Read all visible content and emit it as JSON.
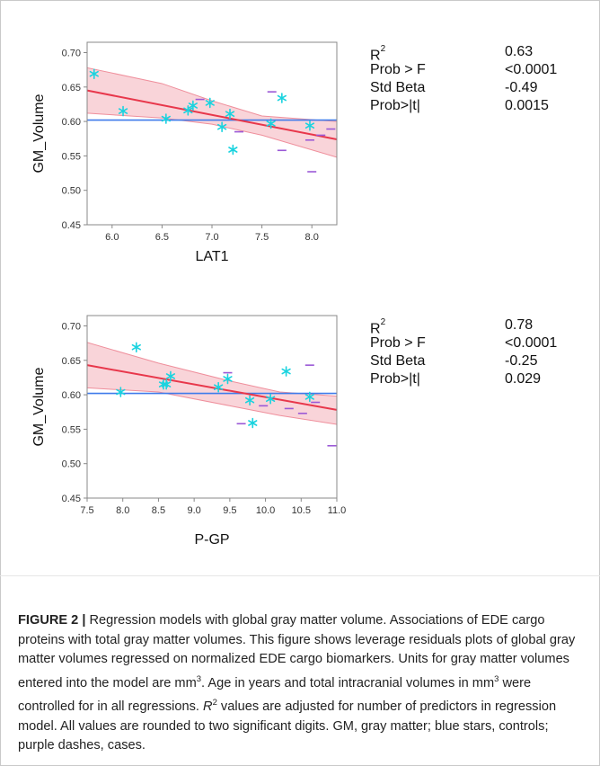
{
  "figure": {
    "label": "FIGURE 2 |",
    "caption_parts": [
      {
        "t": " Regression models with global gray matter volume. Associations of EDE cargo proteins with total gray matter volumes. This figure shows leverage residuals plots of global gray matter volumes regressed on normalized EDE cargo biomarkers. Units for gray matter volumes entered into the model are mm"
      },
      {
        "sup": "3"
      },
      {
        "t": ". Age in years and total intracranial volumes in mm"
      },
      {
        "sup": "3"
      },
      {
        "t": " were controlled for in all regressions. "
      },
      {
        "em": "R"
      },
      {
        "sup": "2"
      },
      {
        "t": " values are adjusted for number of predictors in regression model. All values are rounded to two significant digits. GM, gray matter; blue stars, controls; purple dashes, cases."
      }
    ]
  },
  "colors": {
    "control_marker": "#19d3df",
    "case_marker": "#9b59d6",
    "fit_line": "#e8374b",
    "ci_fill": "#f7c5cc",
    "ci_edge": "#ef8f9c",
    "mean_line": "#3f7bea",
    "frame": "#888888"
  },
  "panels": [
    {
      "stats": [
        {
          "label": "R",
          "label_sup": "2",
          "value": "0.63"
        },
        {
          "label": "Prob > F",
          "label_sup": "",
          "value": "<0.0001"
        },
        {
          "label": "Std Beta",
          "label_sup": "",
          "value": "-0.49"
        },
        {
          "label": "Prob>|t|",
          "label_sup": "",
          "value": "0.0015"
        }
      ],
      "chart_data": {
        "type": "scatter",
        "xlabel": "LAT1",
        "ylabel": "GM_Volume",
        "xlim": [
          5.75,
          8.25
        ],
        "ylim": [
          0.45,
          0.715
        ],
        "xticks": [
          6.0,
          6.5,
          7.0,
          7.5,
          8.0
        ],
        "yticks": [
          0.45,
          0.5,
          0.55,
          0.6,
          0.65,
          0.7
        ],
        "mean_y": 0.602,
        "fit": {
          "x": [
            5.75,
            8.25
          ],
          "y": [
            0.645,
            0.574
          ]
        },
        "ci_upper": [
          [
            5.75,
            0.678
          ],
          [
            6.5,
            0.655
          ],
          [
            7.0,
            0.63
          ],
          [
            7.5,
            0.608
          ],
          [
            8.25,
            0.6
          ]
        ],
        "ci_lower": [
          [
            5.75,
            0.612
          ],
          [
            6.5,
            0.605
          ],
          [
            7.0,
            0.596
          ],
          [
            7.5,
            0.58
          ],
          [
            8.25,
            0.548
          ]
        ],
        "series": [
          {
            "marker": "star",
            "points": [
              [
                5.82,
                0.669
              ],
              [
                6.11,
                0.615
              ],
              [
                6.54,
                0.604
              ],
              [
                6.76,
                0.616
              ],
              [
                6.81,
                0.623
              ],
              [
                6.98,
                0.627
              ],
              [
                7.1,
                0.592
              ],
              [
                7.18,
                0.611
              ],
              [
                7.21,
                0.559
              ],
              [
                7.59,
                0.597
              ],
              [
                7.7,
                0.634
              ],
              [
                7.98,
                0.594
              ]
            ]
          },
          {
            "marker": "dash",
            "points": [
              [
                6.88,
                0.632
              ],
              [
                7.27,
                0.585
              ],
              [
                7.6,
                0.643
              ],
              [
                7.7,
                0.558
              ],
              [
                7.98,
                0.573
              ],
              [
                8.0,
                0.527
              ],
              [
                8.09,
                0.58
              ],
              [
                8.19,
                0.589
              ]
            ]
          }
        ]
      }
    },
    {
      "stats": [
        {
          "label": "R",
          "label_sup": "2",
          "value": "0.78"
        },
        {
          "label": "Prob > F",
          "label_sup": "",
          "value": "<0.0001"
        },
        {
          "label": "Std Beta",
          "label_sup": "",
          "value": "-0.25"
        },
        {
          "label": "Prob>|t|",
          "label_sup": "",
          "value": "0.029"
        }
      ],
      "chart_data": {
        "type": "scatter",
        "xlabel": "P-GP",
        "ylabel": "GM_Volume",
        "xlim": [
          7.5,
          11.0
        ],
        "ylim": [
          0.45,
          0.715
        ],
        "xticks": [
          7.5,
          8.0,
          8.5,
          9.0,
          9.5,
          10.0,
          10.5,
          11.0
        ],
        "yticks": [
          0.45,
          0.5,
          0.55,
          0.6,
          0.65,
          0.7
        ],
        "mean_y": 0.602,
        "fit": {
          "x": [
            7.5,
            11.0
          ],
          "y": [
            0.643,
            0.578
          ]
        },
        "ci_upper": [
          [
            7.5,
            0.676
          ],
          [
            8.5,
            0.646
          ],
          [
            9.5,
            0.62
          ],
          [
            10.2,
            0.604
          ],
          [
            11.0,
            0.598
          ]
        ],
        "ci_lower": [
          [
            7.5,
            0.61
          ],
          [
            8.5,
            0.604
          ],
          [
            9.5,
            0.584
          ],
          [
            10.2,
            0.57
          ],
          [
            11.0,
            0.557
          ]
        ],
        "series": [
          {
            "marker": "star",
            "points": [
              [
                7.97,
                0.604
              ],
              [
                8.19,
                0.669
              ],
              [
                8.57,
                0.615
              ],
              [
                8.61,
                0.615
              ],
              [
                8.67,
                0.627
              ],
              [
                9.34,
                0.611
              ],
              [
                9.47,
                0.623
              ],
              [
                9.78,
                0.592
              ],
              [
                9.82,
                0.559
              ],
              [
                10.07,
                0.594
              ],
              [
                10.29,
                0.634
              ],
              [
                10.62,
                0.597
              ]
            ]
          },
          {
            "marker": "dash",
            "points": [
              [
                9.47,
                0.632
              ],
              [
                9.66,
                0.558
              ],
              [
                9.97,
                0.584
              ],
              [
                10.33,
                0.58
              ],
              [
                10.52,
                0.573
              ],
              [
                10.62,
                0.643
              ],
              [
                10.7,
                0.589
              ],
              [
                10.93,
                0.526
              ]
            ]
          }
        ]
      }
    }
  ]
}
